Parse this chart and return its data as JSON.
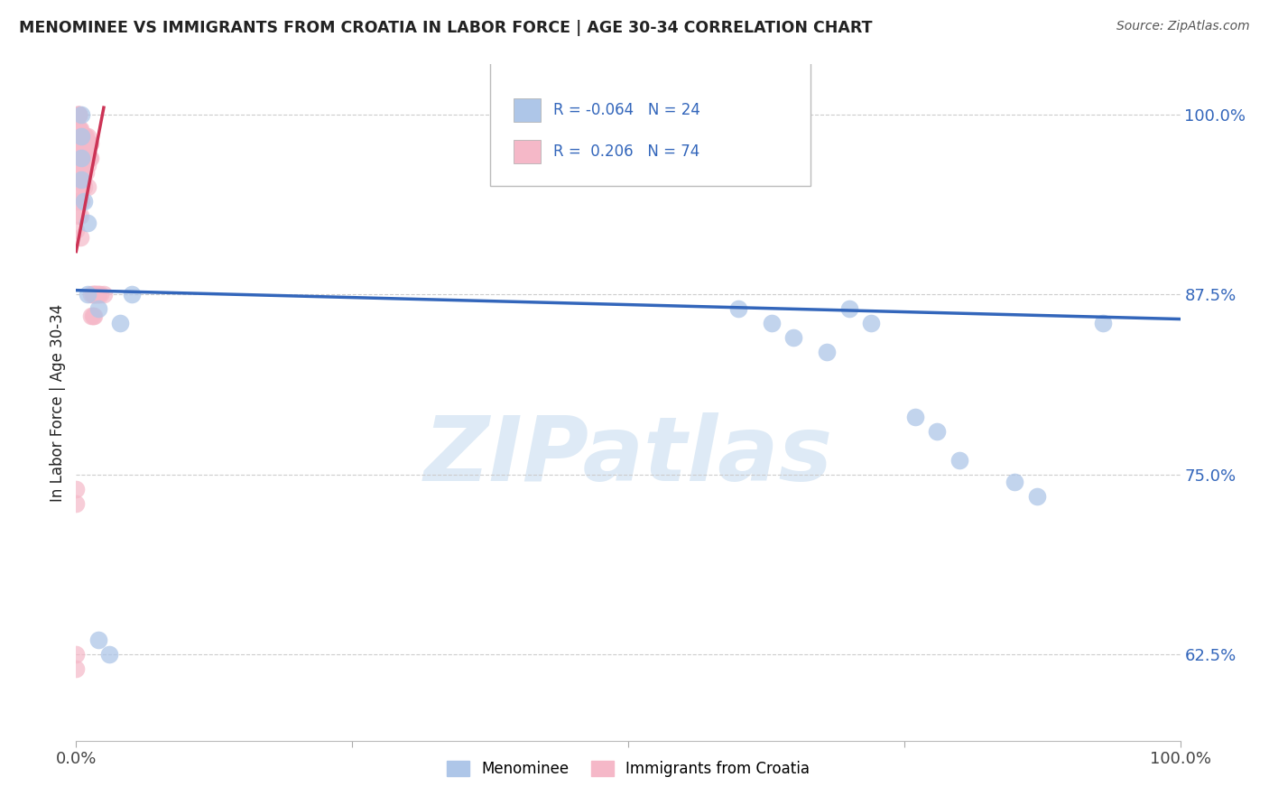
{
  "title": "MENOMINEE VS IMMIGRANTS FROM CROATIA IN LABOR FORCE | AGE 30-34 CORRELATION CHART",
  "source": "Source: ZipAtlas.com",
  "ylabel": "In Labor Force | Age 30-34",
  "xlim": [
    0.0,
    1.0
  ],
  "ylim": [
    0.565,
    1.035
  ],
  "yticks": [
    0.625,
    0.75,
    0.875,
    1.0
  ],
  "ytick_labels": [
    "62.5%",
    "75.0%",
    "87.5%",
    "100.0%"
  ],
  "xticks": [
    0.0,
    0.25,
    0.5,
    0.75,
    1.0
  ],
  "xtick_labels": [
    "0.0%",
    "",
    "",
    "",
    "100.0%"
  ],
  "blue_scatter_x": [
    0.005,
    0.005,
    0.005,
    0.005,
    0.007,
    0.01,
    0.01,
    0.02,
    0.04,
    0.05,
    0.6,
    0.63,
    0.65,
    0.68,
    0.7,
    0.72,
    0.76,
    0.78,
    0.8,
    0.85,
    0.87,
    0.93,
    0.02,
    0.03
  ],
  "blue_scatter_y": [
    1.0,
    0.985,
    0.97,
    0.955,
    0.94,
    0.925,
    0.875,
    0.865,
    0.855,
    0.875,
    0.865,
    0.855,
    0.845,
    0.835,
    0.865,
    0.855,
    0.79,
    0.78,
    0.76,
    0.745,
    0.735,
    0.855,
    0.635,
    0.625
  ],
  "pink_scatter_x": [
    0.002,
    0.002,
    0.002,
    0.002,
    0.002,
    0.002,
    0.002,
    0.002,
    0.002,
    0.002,
    0.002,
    0.002,
    0.003,
    0.003,
    0.003,
    0.003,
    0.004,
    0.004,
    0.004,
    0.004,
    0.004,
    0.004,
    0.004,
    0.004,
    0.005,
    0.005,
    0.005,
    0.005,
    0.005,
    0.006,
    0.006,
    0.006,
    0.006,
    0.007,
    0.007,
    0.007,
    0.007,
    0.008,
    0.008,
    0.008,
    0.009,
    0.009,
    0.009,
    0.01,
    0.01,
    0.01,
    0.01,
    0.011,
    0.011,
    0.012,
    0.012,
    0.013,
    0.013,
    0.014,
    0.014,
    0.015,
    0.015,
    0.016,
    0.016,
    0.017,
    0.018,
    0.019,
    0.02,
    0.022,
    0.025,
    0.0,
    0.0,
    0.0,
    0.0,
    0.0,
    0.0,
    0.0,
    0.0,
    0.0
  ],
  "pink_scatter_y": [
    1.0,
    1.0,
    1.0,
    1.0,
    1.0,
    0.99,
    0.98,
    0.975,
    0.965,
    0.955,
    0.945,
    0.93,
    0.99,
    0.98,
    0.97,
    0.96,
    0.99,
    0.98,
    0.97,
    0.96,
    0.95,
    0.94,
    0.93,
    0.915,
    0.985,
    0.975,
    0.965,
    0.955,
    0.94,
    0.985,
    0.975,
    0.965,
    0.955,
    0.985,
    0.975,
    0.965,
    0.95,
    0.985,
    0.975,
    0.965,
    0.985,
    0.975,
    0.96,
    0.985,
    0.975,
    0.965,
    0.95,
    0.98,
    0.97,
    0.98,
    0.97,
    0.98,
    0.97,
    0.875,
    0.86,
    0.875,
    0.86,
    0.875,
    0.86,
    0.875,
    0.875,
    0.875,
    0.875,
    0.875,
    0.875,
    1.0,
    0.98,
    0.96,
    0.94,
    0.92,
    0.74,
    0.73,
    0.625,
    0.615
  ],
  "blue_line_x": [
    0.0,
    1.0
  ],
  "blue_line_y": [
    0.878,
    0.858
  ],
  "pink_line_x": [
    0.0,
    0.025
  ],
  "pink_line_y": [
    0.905,
    1.005
  ],
  "blue_dot_color": "#aec6e8",
  "pink_dot_color": "#f5b8c8",
  "blue_line_color": "#3366bb",
  "pink_line_color": "#cc3355",
  "legend_blue_r": "-0.064",
  "legend_blue_n": "24",
  "legend_pink_r": "0.206",
  "legend_pink_n": "74",
  "watermark_text": "ZIPatlas",
  "watermark_color": "#c8ddf0",
  "legend_label_blue": "Menominee",
  "legend_label_pink": "Immigrants from Croatia",
  "background_color": "#ffffff",
  "grid_color": "#cccccc",
  "title_color": "#222222",
  "source_color": "#555555",
  "yticklabel_color": "#3366bb",
  "xticklabel_color": "#444444"
}
